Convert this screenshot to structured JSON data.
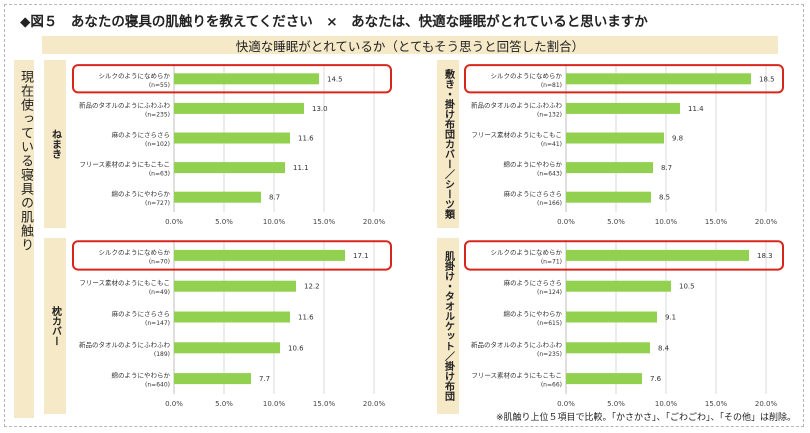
{
  "title": "◆図５　あなたの寝具の肌触りを教えてください　×　あなたは、快適な睡眠がとれていると思いますか",
  "subtitle": "快適な睡眠がとれているか（とてもそう思うと回答した割合）",
  "left_axis_label": "現在使っている寝具の肌触り",
  "footnote": "※肌触り上位５項目で比較。「かさかさ」、「ごわごわ」、「その他」は削除。",
  "colors": {
    "bar": "#92d050",
    "highlight": "#d9261c",
    "band": "#f5e9c8",
    "grid": "#d9d9d9"
  },
  "chart_data": [
    {
      "type": "bar",
      "segment": "ねまき",
      "categories": [
        "シルクのようになめらか",
        "新品のタオルのようにふわふわ",
        "麻のようにさらさら",
        "フリース素材のようにもこもこ",
        "綿のようにやわらか"
      ],
      "counts": [
        "(n=55)",
        "(n=235)",
        "(n=102)",
        "(n=63)",
        "(n=727)"
      ],
      "values": [
        14.5,
        13.0,
        11.6,
        11.1,
        8.7
      ],
      "xlim": [
        0,
        20
      ],
      "xticks": [
        "0.0%",
        "5.0%",
        "10.0%",
        "15.0%",
        "20.0%"
      ],
      "highlight_index": 0
    },
    {
      "type": "bar",
      "segment": "枕カバー",
      "categories": [
        "シルクのようになめらか",
        "フリース素材のようにもこもこ",
        "麻のようにさらさら",
        "新品のタオルのようにふわふわ",
        "綿のようにやわらか"
      ],
      "counts": [
        "(n=70)",
        "(n=49)",
        "(n=147)",
        "(189)",
        "(n=640)"
      ],
      "values": [
        17.1,
        12.2,
        11.6,
        10.6,
        7.7
      ],
      "xlim": [
        0,
        20
      ],
      "xticks": [
        "0.0%",
        "5.0%",
        "10.0%",
        "15.0%",
        "20.0%"
      ],
      "highlight_index": 0
    },
    {
      "type": "bar",
      "segment": "敷き・掛け布団カバー／シーツ類",
      "categories": [
        "シルクのようになめらか",
        "新品のタオルのようにふわふわ",
        "フリース素材のようにもこもこ",
        "綿のようにやわらか",
        "麻のようにさらさら"
      ],
      "counts": [
        "(n=81)",
        "(n=132)",
        "(n=41)",
        "(n=643)",
        "(n=166)"
      ],
      "values": [
        18.5,
        11.4,
        9.8,
        8.7,
        8.5
      ],
      "xlim": [
        0,
        20
      ],
      "xticks": [
        "0.0%",
        "5.0%",
        "10.0%",
        "15.0%",
        "20.0%"
      ],
      "highlight_index": 0
    },
    {
      "type": "bar",
      "segment": "肌掛け・タオルケット／掛け布団",
      "categories": [
        "シルクのようになめらか",
        "麻のようにさらさら",
        "綿のようにやわらか",
        "新品のタオルのようにふわふわ",
        "フリース素材のようにもこもこ"
      ],
      "counts": [
        "(n=71)",
        "(n=124)",
        "(n=615)",
        "(n=235)",
        "(n=66)"
      ],
      "values": [
        18.3,
        10.5,
        9.1,
        8.4,
        7.6
      ],
      "xlim": [
        0,
        20
      ],
      "xticks": [
        "0.0%",
        "5.0%",
        "10.0%",
        "15.0%",
        "20.0%"
      ],
      "highlight_index": 0
    }
  ]
}
